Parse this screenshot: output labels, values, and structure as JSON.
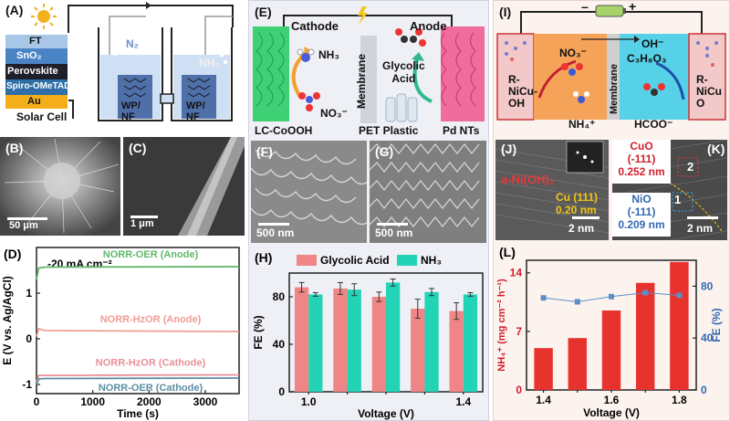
{
  "panels": {
    "A": {
      "label": "(A)",
      "layers": [
        "FT",
        "SnO₂",
        "Perovskite",
        "Spiro-OMeTAD",
        "Au"
      ],
      "solar_cell_label": "Solar Cell",
      "gas_n2": "N₂",
      "gas_nh3": "NH₃",
      "electrode_left": [
        "WP/",
        "NF"
      ],
      "electrode_right": [
        "WP/",
        "NF"
      ]
    },
    "B": {
      "label": "(B)",
      "scale": "50 μm"
    },
    "C": {
      "label": "(C)",
      "scale": "1 μm"
    },
    "E": {
      "label": "(E)",
      "cathode": "Cathode",
      "anode": "Anode",
      "nh3": "NH₃",
      "no3": "NO₃⁻",
      "membrane": "Membrane",
      "glycolic": [
        "Glycolic",
        "Acid"
      ],
      "cathode_material": "LC-CoOOH",
      "pet": "PET Plastic",
      "pd": "Pd NTs"
    },
    "F": {
      "label": "(F)",
      "scale": "500 nm"
    },
    "G": {
      "label": "(G)",
      "scale": "500 nm"
    },
    "I": {
      "label": "(I)",
      "minus": "–",
      "plus": "+",
      "no3": "NO₃⁻",
      "oh": "OH⁻",
      "c3": "C₃H₈O₃",
      "membrane": "Membrane",
      "left_cat": [
        "R-",
        "NiCu-",
        "OH"
      ],
      "right_cat": [
        "R-",
        "NiCu",
        "O"
      ],
      "nh4": "NH₄⁺",
      "hcoo": "HCOO⁻"
    },
    "J": {
      "label": "(J)",
      "phase": "a-Ni(OH)₂",
      "cu_plane": "Cu (111)",
      "cu_d": "0.20 nm",
      "scale": "2 nm"
    },
    "K": {
      "label": "(K)",
      "cuo": [
        "CuO",
        "(-111)",
        "0.252 nm"
      ],
      "nio": [
        "NiO",
        "(-111)",
        "0.209 nm"
      ],
      "marker1": "1",
      "marker2": "2",
      "scale": "2 nm"
    }
  },
  "chart_data": [
    {
      "id": "D",
      "label": "(D)",
      "type": "line",
      "title": "",
      "annotation": "-20 mA cm⁻²",
      "xlabel": "Time (s)",
      "ylabel": "E (V vs. Ag/AgCl)",
      "xlim": [
        0,
        3600
      ],
      "ylim": [
        -1.2,
        2.0
      ],
      "xticks": [
        0,
        1000,
        2000,
        3000
      ],
      "yticks": [
        -1,
        0,
        1
      ],
      "series": [
        {
          "name": "NORR-OER (Anode)",
          "color": "#5fb86a",
          "x": [
            0,
            40,
            150,
            3600
          ],
          "y": [
            1.3,
            1.55,
            1.57,
            1.58
          ]
        },
        {
          "name": "NORR-HzOR (Anode)",
          "color": "#f19c96",
          "x": [
            0,
            40,
            150,
            3600
          ],
          "y": [
            0.05,
            0.22,
            0.18,
            0.16
          ]
        },
        {
          "name": "NORR-HzOR (Cathode)",
          "color": "#e8909a",
          "x": [
            0,
            40,
            150,
            3600
          ],
          "y": [
            -0.95,
            -0.8,
            -0.8,
            -0.79
          ]
        },
        {
          "name": "NORR-OER (Cathode)",
          "color": "#5c8fa3",
          "x": [
            0,
            40,
            150,
            3600
          ],
          "y": [
            -1.0,
            -0.88,
            -0.87,
            -0.86
          ]
        }
      ]
    },
    {
      "id": "H",
      "label": "(H)",
      "type": "bar",
      "xlabel": "Voltage (V)",
      "ylabel": "FE (%)",
      "ylim": [
        0,
        100
      ],
      "yticks": [
        0,
        40,
        80
      ],
      "categories": [
        "1.0",
        "1.1",
        "1.2",
        "1.3",
        "1.4"
      ],
      "xtick_labels": [
        "1.0",
        "",
        "",
        "",
        "1.4"
      ],
      "series": [
        {
          "name": "Glycolic Acid",
          "color": "#ef8585",
          "values": [
            88,
            87,
            80,
            70,
            68
          ],
          "errors": [
            4,
            5,
            4,
            8,
            7
          ]
        },
        {
          "name": "NH₃",
          "color": "#22d3b5",
          "values": [
            82,
            86,
            92,
            84,
            82
          ],
          "errors": [
            1.5,
            5,
            3,
            3,
            1.5
          ]
        }
      ]
    },
    {
      "id": "L",
      "label": "(L)",
      "type": "bar+line",
      "xlabel": "Voltage (V)",
      "ylabel_left": "NH₄⁺ (mg cm⁻² h⁻¹)",
      "ylabel_right": "FE (%)",
      "categories": [
        "1.4",
        "1.5",
        "1.6",
        "1.7",
        "1.8"
      ],
      "xtick_labels": [
        "1.4",
        "1.6",
        "1.8"
      ],
      "left_ylim": [
        0,
        15.5
      ],
      "left_yticks": [
        0,
        7,
        14
      ],
      "right_ylim": [
        0,
        100
      ],
      "right_yticks": [
        0,
        40,
        80
      ],
      "bars": {
        "name": "NH₄⁺ yield",
        "color": "#e8322e",
        "values": [
          5.0,
          6.2,
          9.5,
          12.8,
          15.3
        ]
      },
      "line": {
        "name": "FE",
        "color": "#5b8fc7",
        "values": [
          71,
          68,
          72,
          75,
          73
        ]
      }
    }
  ]
}
